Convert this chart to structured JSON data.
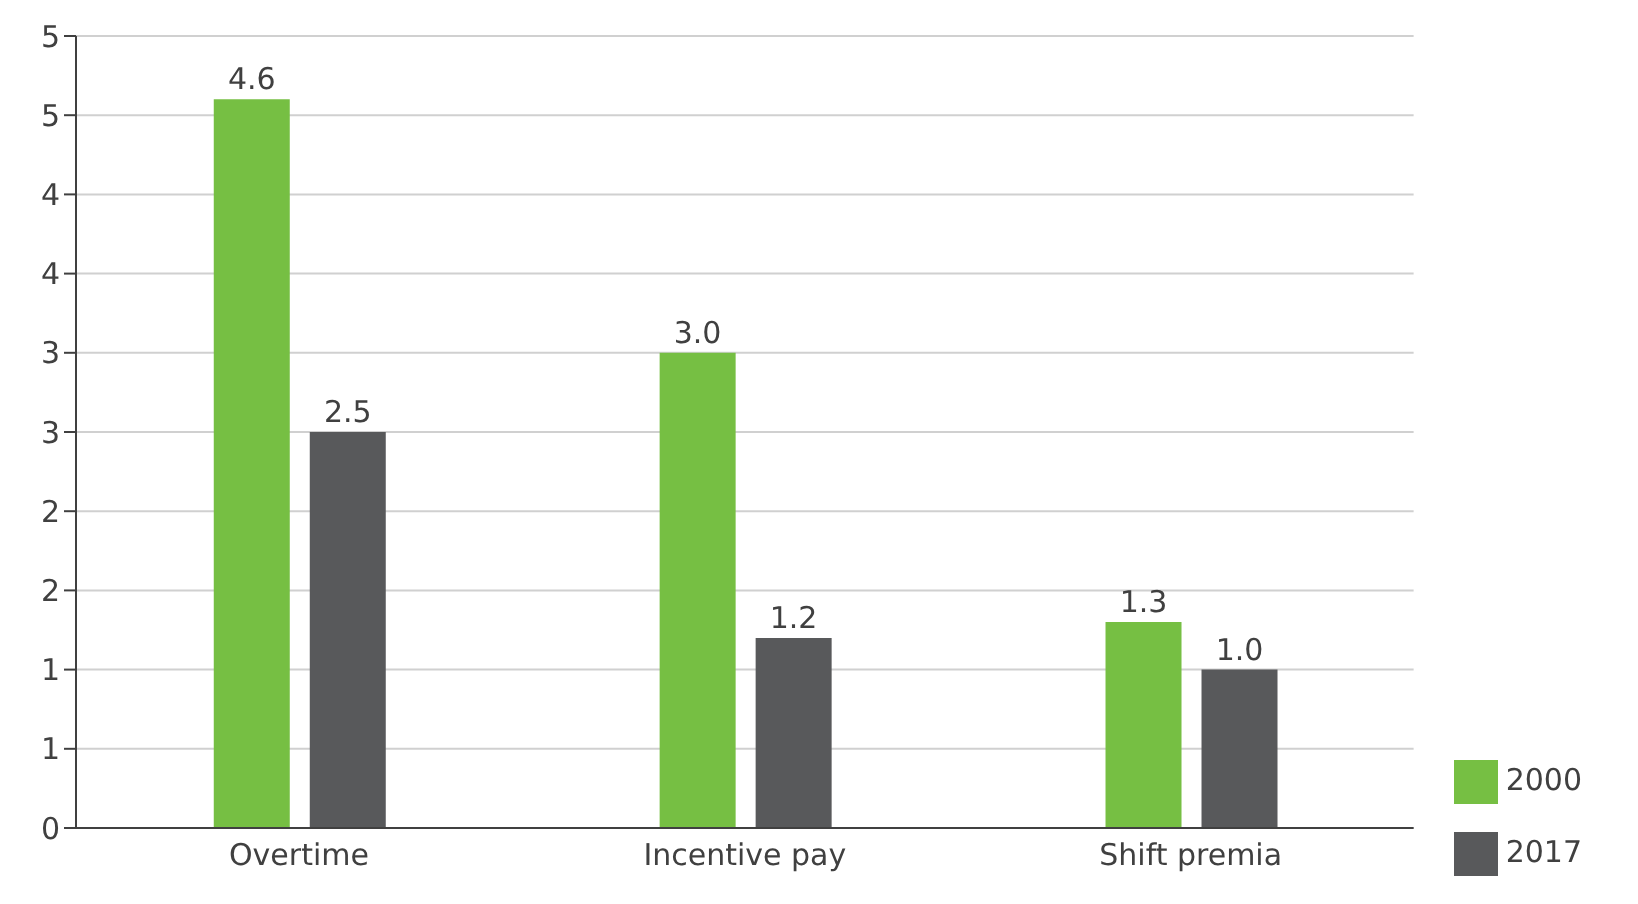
{
  "chart_data": {
    "type": "bar",
    "categories": [
      "Overtime",
      "Incentive pay",
      "Shift premia"
    ],
    "series": [
      {
        "name": "2000",
        "color": "#76bf43",
        "values": [
          4.6,
          3.0,
          1.3
        ],
        "value_labels": [
          "4.6",
          "3.0",
          "1.3"
        ]
      },
      {
        "name": "2017",
        "color": "#58595b",
        "values": [
          2.5,
          1.2,
          1.0
        ],
        "value_labels": [
          "2.5",
          "1.2",
          "1.0"
        ]
      }
    ],
    "ylim": [
      0,
      5
    ],
    "yticks": [
      0,
      {
        "value": 0.5,
        "label": "1"
      },
      1,
      {
        "value": 1.5,
        "label": "2"
      },
      2,
      {
        "value": 2.5,
        "label": "3"
      },
      3,
      {
        "value": 3.5,
        "label": "4"
      },
      4,
      {
        "value": 4.5,
        "label": "5"
      },
      5
    ],
    "grid": "y",
    "legend": "bottom right"
  }
}
